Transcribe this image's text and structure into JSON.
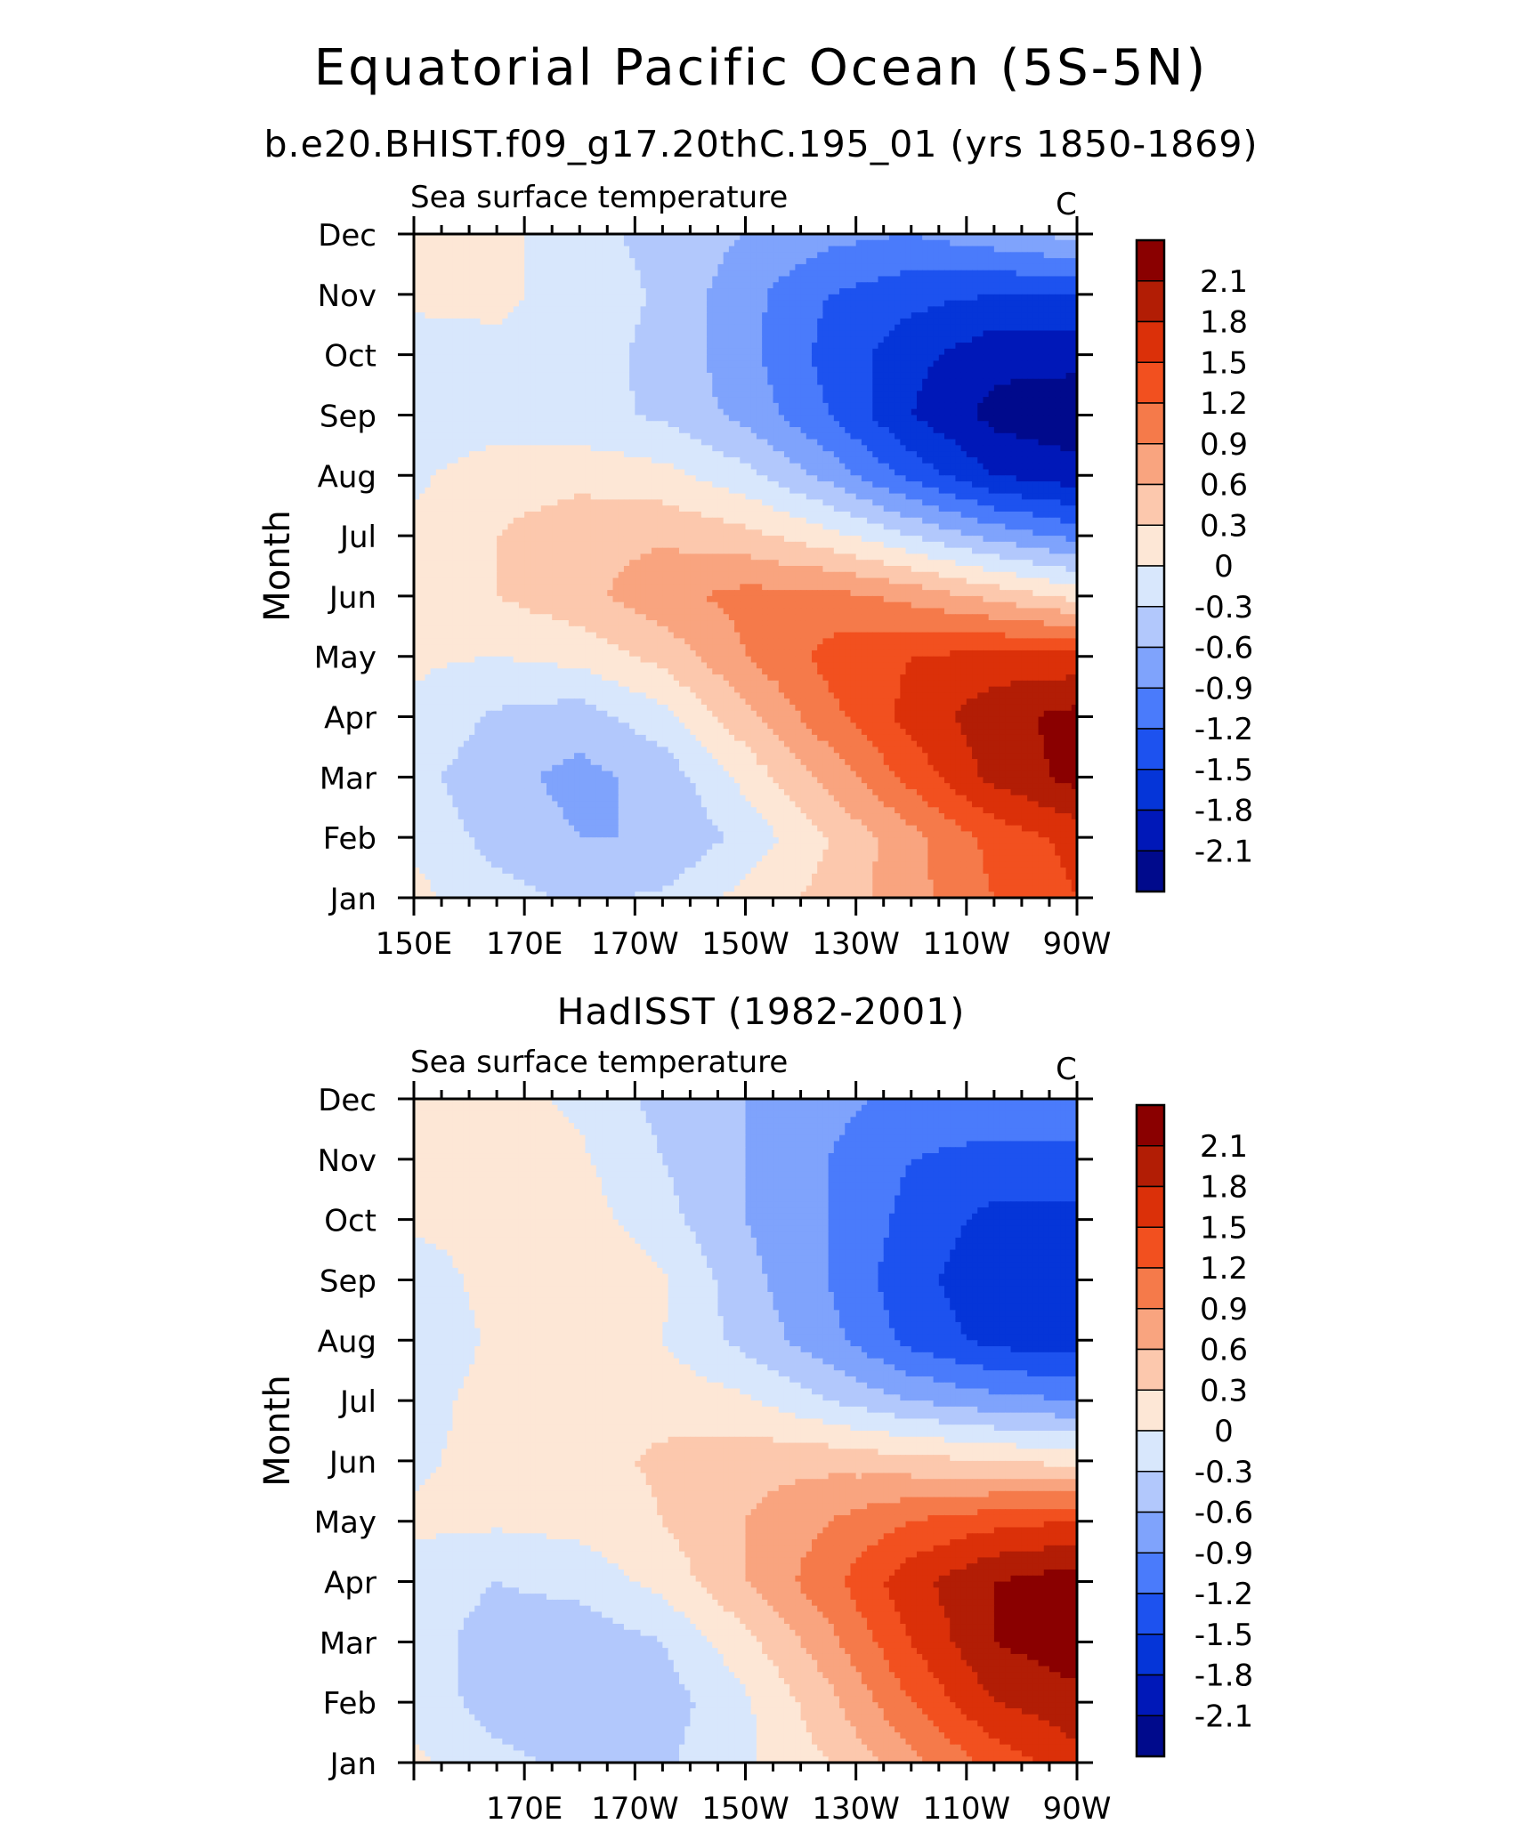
{
  "figure": {
    "main_title": "Equatorial Pacific Ocean (5S-5N)"
  },
  "chart_data": [
    {
      "type": "heatmap",
      "panel_title": "b.e20.BHIST.f09_g17.20thC.195_01 (yrs 1850-1869)",
      "left_label": "Sea surface temperature",
      "units": "C",
      "ylabel": "Month",
      "xlabel": "",
      "y_ticks": [
        "Jan",
        "Feb",
        "Mar",
        "Apr",
        "May",
        "Jun",
        "Jul",
        "Aug",
        "Sep",
        "Oct",
        "Nov",
        "Dec"
      ],
      "x_ticks": [
        "150E",
        "170E",
        "170W",
        "150W",
        "130W",
        "110W",
        "90W"
      ],
      "x_tick_lon": [
        150,
        170,
        190,
        210,
        230,
        250,
        270
      ],
      "xlim": [
        150,
        270
      ],
      "lon": [
        150,
        165,
        180,
        195,
        210,
        225,
        240,
        255,
        270
      ],
      "values": [
        [
          0.1,
          -0.2,
          -0.35,
          -0.25,
          0.1,
          0.4,
          0.8,
          1.2,
          1.5
        ],
        [
          -0.1,
          -0.4,
          -0.6,
          -0.6,
          -0.2,
          0.3,
          0.8,
          1.3,
          1.6
        ],
        [
          -0.2,
          -0.5,
          -0.7,
          -0.5,
          0.1,
          0.7,
          1.3,
          1.9,
          2.2
        ],
        [
          -0.05,
          -0.35,
          -0.45,
          -0.1,
          0.5,
          1.1,
          1.6,
          2.0,
          2.2
        ],
        [
          0.05,
          0.0,
          0.1,
          0.4,
          0.9,
          1.3,
          1.5,
          1.6,
          1.6
        ],
        [
          0.05,
          0.3,
          0.5,
          0.8,
          1.0,
          1.0,
          0.8,
          0.5,
          0.2
        ],
        [
          0.05,
          0.3,
          0.5,
          0.55,
          0.4,
          0.1,
          -0.3,
          -0.7,
          -1.0
        ],
        [
          -0.05,
          0.15,
          0.2,
          0.1,
          -0.2,
          -0.7,
          -1.3,
          -1.8,
          -2.0
        ],
        [
          -0.2,
          -0.15,
          -0.2,
          -0.35,
          -0.7,
          -1.2,
          -1.8,
          -2.2,
          -2.3
        ],
        [
          -0.1,
          -0.05,
          -0.15,
          -0.4,
          -0.8,
          -1.3,
          -1.7,
          -2.0,
          -2.0
        ],
        [
          0.05,
          0.05,
          -0.1,
          -0.35,
          -0.8,
          -1.2,
          -1.4,
          -1.5,
          -1.5
        ],
        [
          0.1,
          0.1,
          -0.2,
          -0.4,
          -0.6,
          -0.8,
          -0.9,
          -0.7,
          -0.5
        ]
      ],
      "levels": [
        -2.1,
        -1.8,
        -1.5,
        -1.2,
        -0.9,
        -0.6,
        -0.3,
        0,
        0.3,
        0.6,
        0.9,
        1.2,
        1.5,
        1.8,
        2.1
      ],
      "colors": [
        "#000a8c",
        "#0018b8",
        "#0535d8",
        "#1d52ef",
        "#4a7bfb",
        "#7fa3fc",
        "#b2c8fc",
        "#d8e7fc",
        "#fde7d6",
        "#fcc8ad",
        "#f9a47f",
        "#f57a4a",
        "#f2501f",
        "#db3009",
        "#b21d05",
        "#8a0000"
      ],
      "legend_labels": [
        "2.1",
        "1.8",
        "1.5",
        "1.2",
        "0.9",
        "0.6",
        "0.3",
        "0",
        "-0.3",
        "-0.6",
        "-0.9",
        "-1.2",
        "-1.5",
        "-1.8",
        "-2.1"
      ]
    },
    {
      "type": "heatmap",
      "panel_title": "HadISST (1982-2001)",
      "left_label": "Sea surface temperature",
      "units": "C",
      "ylabel": "Month",
      "xlabel": "",
      "y_ticks": [
        "Jan",
        "Feb",
        "Mar",
        "Apr",
        "May",
        "Jun",
        "Jul",
        "Aug",
        "Sep",
        "Oct",
        "Nov",
        "Dec"
      ],
      "x_ticks": [
        "170E",
        "170W",
        "150W",
        "130W",
        "110W",
        "90W"
      ],
      "x_tick_lon": [
        170,
        190,
        210,
        230,
        250,
        270
      ],
      "xlim": [
        150,
        270
      ],
      "lon": [
        150,
        165,
        180,
        195,
        210,
        225,
        240,
        255,
        270
      ],
      "values": [
        [
          0.05,
          -0.2,
          -0.4,
          -0.35,
          -0.05,
          0.3,
          0.8,
          1.3,
          1.7
        ],
        [
          -0.1,
          -0.45,
          -0.55,
          -0.45,
          -0.05,
          0.5,
          1.2,
          1.8,
          2.0
        ],
        [
          -0.15,
          -0.45,
          -0.5,
          -0.3,
          0.2,
          0.8,
          1.5,
          2.1,
          2.3
        ],
        [
          -0.1,
          -0.3,
          -0.2,
          0.1,
          0.6,
          1.1,
          1.7,
          2.1,
          2.3
        ],
        [
          0.05,
          0.05,
          0.1,
          0.3,
          0.6,
          0.9,
          1.2,
          1.4,
          1.5
        ],
        [
          -0.05,
          0.1,
          0.2,
          0.35,
          0.5,
          0.5,
          0.4,
          0.3,
          0.2
        ],
        [
          -0.1,
          0.1,
          0.15,
          0.2,
          0.05,
          -0.3,
          -0.6,
          -0.8,
          -0.9
        ],
        [
          -0.2,
          0.05,
          0.15,
          0.0,
          -0.4,
          -0.8,
          -1.3,
          -1.6,
          -1.7
        ],
        [
          -0.15,
          0.1,
          0.3,
          0.05,
          -0.5,
          -0.9,
          -1.4,
          -1.7,
          -1.8
        ],
        [
          0.05,
          0.1,
          0.15,
          -0.2,
          -0.6,
          -0.9,
          -1.3,
          -1.6,
          -1.6
        ],
        [
          0.1,
          0.1,
          0.05,
          -0.3,
          -0.6,
          -0.9,
          -1.2,
          -1.3,
          -1.3
        ],
        [
          0.1,
          0.1,
          -0.05,
          -0.4,
          -0.6,
          -0.8,
          -1.0,
          -1.0,
          -0.9
        ]
      ],
      "levels": [
        -2.1,
        -1.8,
        -1.5,
        -1.2,
        -0.9,
        -0.6,
        -0.3,
        0,
        0.3,
        0.6,
        0.9,
        1.2,
        1.5,
        1.8,
        2.1
      ],
      "colors": [
        "#000a8c",
        "#0018b8",
        "#0535d8",
        "#1d52ef",
        "#4a7bfb",
        "#7fa3fc",
        "#b2c8fc",
        "#d8e7fc",
        "#fde7d6",
        "#fcc8ad",
        "#f9a47f",
        "#f57a4a",
        "#f2501f",
        "#db3009",
        "#b21d05",
        "#8a0000"
      ],
      "legend_labels": [
        "2.1",
        "1.8",
        "1.5",
        "1.2",
        "0.9",
        "0.6",
        "0.3",
        "0",
        "-0.3",
        "-0.6",
        "-0.9",
        "-1.2",
        "-1.5",
        "-1.8",
        "-2.1"
      ]
    }
  ]
}
